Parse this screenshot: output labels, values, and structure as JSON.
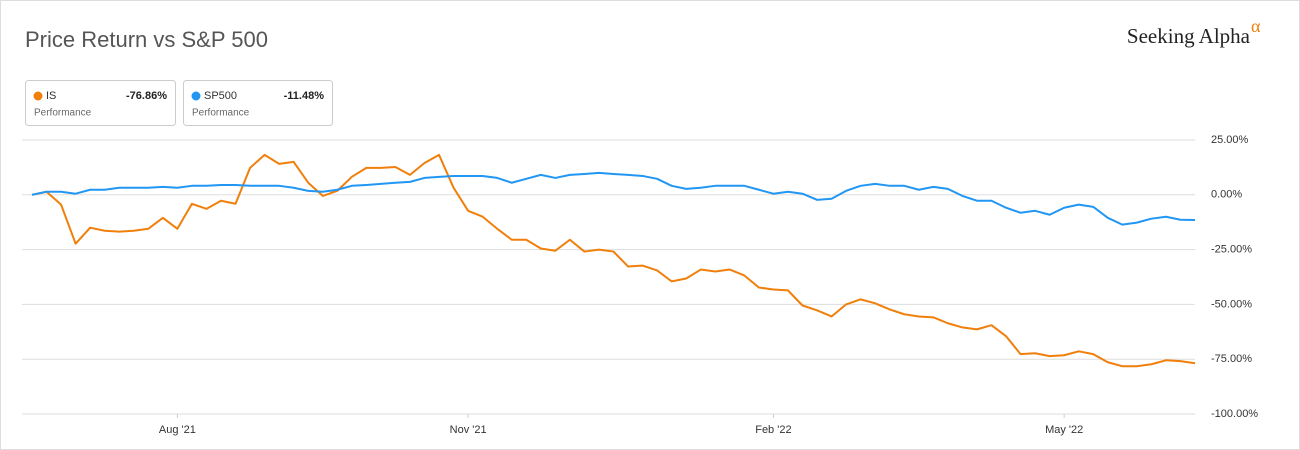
{
  "chart_data": {
    "type": "line",
    "title": "Price Return vs S&P 500",
    "logo": "Seeking Alpha",
    "logo_mark": "α",
    "categories": [
      null,
      null,
      null,
      null,
      null,
      null,
      null,
      null,
      null,
      null,
      "Aug '21",
      null,
      null,
      null,
      null,
      null,
      null,
      null,
      null,
      null,
      null,
      null,
      null,
      null,
      null,
      null,
      null,
      null,
      null,
      null,
      "Nov '21",
      null,
      null,
      null,
      null,
      null,
      null,
      null,
      null,
      null,
      null,
      null,
      null,
      null,
      null,
      null,
      null,
      null,
      null,
      null,
      null,
      "Feb '22",
      null,
      null,
      null,
      null,
      null,
      null,
      null,
      null,
      null,
      null,
      null,
      null,
      null,
      null,
      null,
      null,
      null,
      null,
      null,
      "May '22",
      null,
      null,
      null,
      null,
      null,
      null,
      null,
      null,
      null
    ],
    "series": [
      {
        "name": "IS",
        "color": "#f07f0b",
        "legend_value": {
          "value": -76.86,
          "label": "-76.86%"
        },
        "legend_caption": "Performance",
        "values": [
          0,
          1.4,
          -4.5,
          -22.3,
          -15,
          -16.4,
          -16.8,
          -16.4,
          -15.5,
          -10.5,
          -15.5,
          -4.1,
          -6.4,
          -2.7,
          -4.1,
          12.3,
          18.2,
          14.1,
          15,
          5.5,
          -0.5,
          1.8,
          8.2,
          12.3,
          12.3,
          12.7,
          9.1,
          14.5,
          18.2,
          3.2,
          -7.3,
          -10,
          -15.5,
          -20.5,
          -20.5,
          -24.5,
          -25.5,
          -20.5,
          -25.9,
          -25,
          -25.9,
          -32.7,
          -32.3,
          -34.5,
          -39.5,
          -38.2,
          -34.1,
          -35,
          -34.1,
          -36.8,
          -42.3,
          -43.2,
          -43.6,
          -50.5,
          -52.7,
          -55.5,
          -50,
          -47.7,
          -49.5,
          -52.3,
          -54.5,
          -55.5,
          -55.9,
          -58.6,
          -60.5,
          -61.4,
          -59.5,
          -64.5,
          -72.7,
          -72.3,
          -73.6,
          -73.2,
          -71.4,
          -72.7,
          -76.4,
          -78.2,
          -78.2,
          -77.3,
          -75.5,
          -75.9,
          -76.86
        ]
      },
      {
        "name": "SP500",
        "color": "#2196f3",
        "legend_value": {
          "value": -11.48,
          "label": "-11.48%"
        },
        "legend_caption": "Performance",
        "values": [
          0,
          1.4,
          1.4,
          0.5,
          2.3,
          2.3,
          3.2,
          3.2,
          3.2,
          3.6,
          3.2,
          4.1,
          4.1,
          4.5,
          4.5,
          4.1,
          4.1,
          4.1,
          3.2,
          1.8,
          1.4,
          2.3,
          4.1,
          4.5,
          5,
          5.5,
          5.9,
          7.7,
          8.2,
          8.6,
          8.6,
          8.6,
          7.7,
          5.5,
          7.3,
          9.1,
          7.7,
          9.1,
          9.5,
          10,
          9.5,
          9.1,
          8.6,
          7.3,
          4.1,
          2.7,
          3.2,
          4.1,
          4.1,
          4.1,
          2.3,
          0.5,
          1.4,
          0.5,
          -2.3,
          -1.8,
          1.8,
          4.1,
          5,
          4.1,
          4.1,
          2.3,
          3.6,
          2.7,
          -0.5,
          -2.7,
          -2.7,
          -5.9,
          -8.2,
          -7.3,
          -9.1,
          -5.9,
          -4.5,
          -5.5,
          -10.5,
          -13.6,
          -12.7,
          -10.9,
          -10,
          -11.4,
          -11.48
        ]
      }
    ],
    "ylim": [
      -100,
      25
    ],
    "yticks": [
      {
        "value": 25,
        "label": "25.00%"
      },
      {
        "value": 0,
        "label": "0.00%"
      },
      {
        "value": -25,
        "label": "-25.00%"
      },
      {
        "value": -50,
        "label": "-50.00%"
      },
      {
        "value": -75,
        "label": "-75.00%"
      },
      {
        "value": -100,
        "label": "-100.00%"
      }
    ],
    "grid": true
  }
}
